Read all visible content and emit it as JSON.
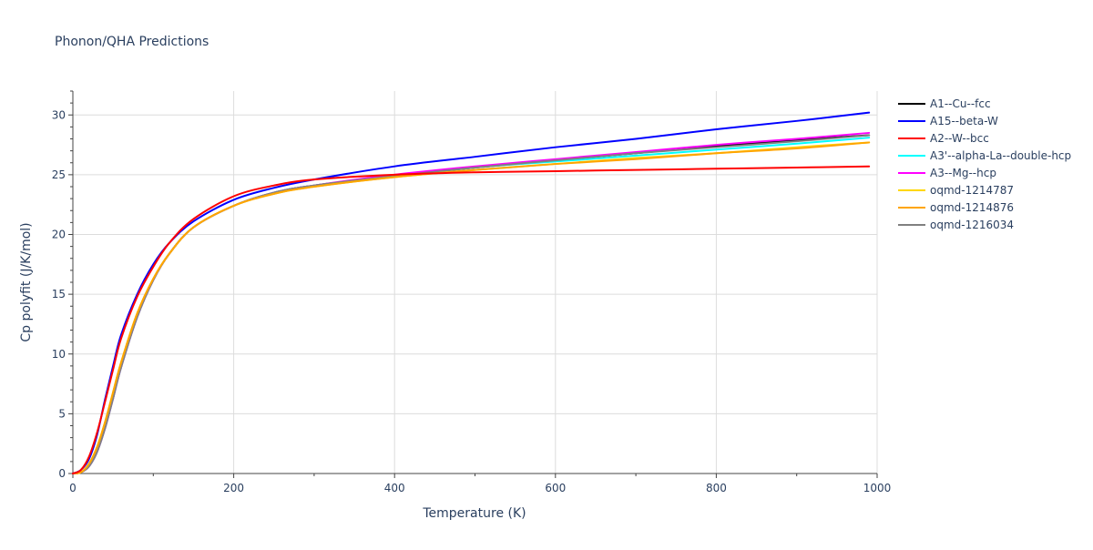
{
  "chart_data": {
    "type": "line",
    "title": "Phonon/QHA Predictions",
    "xlabel": "Temperature (K)",
    "ylabel": "Cp polyfit (J/K/mol)",
    "xlim": [
      0,
      1000
    ],
    "ylim": [
      0,
      32
    ],
    "xticks": [
      0,
      200,
      400,
      600,
      800,
      1000
    ],
    "yticks": [
      0,
      5,
      10,
      15,
      20,
      25,
      30
    ],
    "grid": true,
    "legend_position": "right",
    "series": [
      {
        "name": "A1--Cu--fcc",
        "color": "#000000",
        "x": [
          0,
          10,
          20,
          30,
          40,
          50,
          60,
          80,
          100,
          120,
          150,
          200,
          250,
          300,
          400,
          500,
          600,
          700,
          800,
          900,
          990
        ],
        "values": [
          0,
          0.1,
          0.6,
          1.8,
          3.8,
          6.3,
          8.9,
          13.1,
          16.2,
          18.4,
          20.6,
          22.4,
          23.5,
          24.1,
          24.9,
          25.6,
          26.2,
          26.8,
          27.4,
          27.9,
          28.3
        ]
      },
      {
        "name": "A15--beta-W",
        "color": "#0000ff",
        "x": [
          0,
          10,
          20,
          30,
          40,
          50,
          60,
          80,
          100,
          120,
          150,
          200,
          250,
          300,
          400,
          500,
          600,
          700,
          800,
          900,
          990
        ],
        "values": [
          0,
          0.3,
          1.2,
          3.2,
          6.2,
          9.0,
          11.6,
          15.0,
          17.5,
          19.3,
          21.1,
          22.9,
          23.9,
          24.6,
          25.7,
          26.5,
          27.3,
          28.0,
          28.8,
          29.5,
          30.2
        ]
      },
      {
        "name": "A2--W--bcc",
        "color": "#ff0000",
        "x": [
          0,
          10,
          20,
          30,
          40,
          50,
          60,
          80,
          100,
          120,
          150,
          200,
          250,
          300,
          400,
          500,
          600,
          700,
          800,
          900,
          990
        ],
        "values": [
          0,
          0.3,
          1.4,
          3.4,
          6.0,
          8.7,
          11.3,
          14.8,
          17.3,
          19.3,
          21.3,
          23.2,
          24.1,
          24.6,
          25.0,
          25.2,
          25.3,
          25.4,
          25.5,
          25.6,
          25.7
        ]
      },
      {
        "name": "A3'--alpha-La--double-hcp",
        "color": "#00ffff",
        "x": [
          0,
          10,
          20,
          30,
          40,
          50,
          60,
          80,
          100,
          120,
          150,
          200,
          250,
          300,
          400,
          500,
          600,
          700,
          800,
          900,
          990
        ],
        "values": [
          0,
          0.1,
          0.6,
          1.8,
          3.8,
          6.3,
          8.9,
          13.1,
          16.2,
          18.4,
          20.6,
          22.4,
          23.5,
          24.1,
          24.9,
          25.6,
          26.1,
          26.6,
          27.1,
          27.6,
          28.1
        ]
      },
      {
        "name": "A3--Mg--hcp",
        "color": "#ff00ff",
        "x": [
          0,
          10,
          20,
          30,
          40,
          50,
          60,
          80,
          100,
          120,
          150,
          200,
          250,
          300,
          400,
          500,
          600,
          700,
          800,
          900,
          990
        ],
        "values": [
          0,
          0.1,
          0.6,
          1.8,
          3.8,
          6.3,
          8.9,
          13.1,
          16.2,
          18.4,
          20.6,
          22.4,
          23.5,
          24.1,
          25.0,
          25.7,
          26.3,
          26.9,
          27.5,
          28.0,
          28.5
        ]
      },
      {
        "name": "oqmd-1214787",
        "color": "#ffd700",
        "x": [
          0,
          10,
          20,
          30,
          40,
          50,
          60,
          80,
          100,
          120,
          150,
          200,
          250,
          300,
          400,
          500,
          600,
          700,
          800,
          900,
          990
        ],
        "values": [
          0,
          0.1,
          0.8,
          2.2,
          4.3,
          6.8,
          9.3,
          13.4,
          16.3,
          18.4,
          20.6,
          22.4,
          23.4,
          24.0,
          24.8,
          25.4,
          25.9,
          26.4,
          26.8,
          27.3,
          27.7
        ]
      },
      {
        "name": "oqmd-1214876",
        "color": "#ffa500",
        "x": [
          0,
          10,
          20,
          30,
          40,
          50,
          60,
          80,
          100,
          120,
          150,
          200,
          250,
          300,
          400,
          500,
          600,
          700,
          800,
          900,
          990
        ],
        "values": [
          0,
          0.1,
          0.8,
          2.2,
          4.3,
          6.8,
          9.3,
          13.4,
          16.3,
          18.4,
          20.6,
          22.4,
          23.4,
          24.0,
          24.8,
          25.4,
          25.9,
          26.3,
          26.8,
          27.2,
          27.7
        ]
      },
      {
        "name": "oqmd-1216034",
        "color": "#808080",
        "x": [
          0,
          10,
          20,
          30,
          40,
          50,
          60,
          80,
          100,
          120,
          150,
          200,
          250,
          300,
          400,
          500,
          600,
          700,
          800,
          900,
          990
        ],
        "values": [
          0,
          0.1,
          0.6,
          1.8,
          3.8,
          6.3,
          8.9,
          13.1,
          16.2,
          18.4,
          20.6,
          22.4,
          23.5,
          24.1,
          24.9,
          25.6,
          26.2,
          26.8,
          27.3,
          27.8,
          28.3
        ]
      }
    ]
  }
}
